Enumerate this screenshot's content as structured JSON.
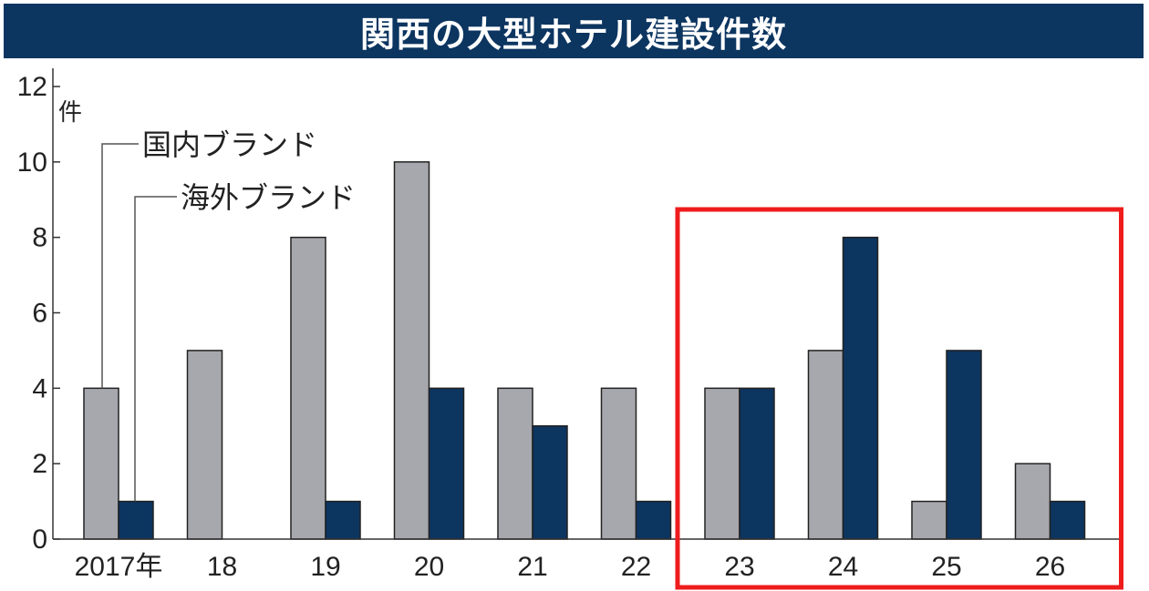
{
  "header": {
    "title": "関西の大型ホテル建設件数"
  },
  "colors": {
    "domestic": "#a7a8ad",
    "foreign": "#0c3560",
    "highlight": "#ee1c1c",
    "title_bg": "#0c3560"
  },
  "chart_data": {
    "type": "bar",
    "title": "関西の大型ホテル建設件数",
    "unit_label": "件",
    "categories": [
      "2017年",
      "18",
      "19",
      "20",
      "21",
      "22",
      "23",
      "24",
      "25",
      "26"
    ],
    "series": [
      {
        "name": "国内ブランド",
        "values": [
          4,
          5,
          8,
          10,
          4,
          4,
          4,
          5,
          1,
          2
        ]
      },
      {
        "name": "海外ブランド",
        "values": [
          1,
          0,
          1,
          4,
          3,
          1,
          4,
          8,
          5,
          1
        ]
      }
    ],
    "ylim": [
      0,
      12
    ],
    "yticks": [
      0,
      2,
      4,
      6,
      8,
      10,
      12
    ],
    "highlight_categories": [
      "23",
      "24",
      "25",
      "26"
    ],
    "grid": false
  }
}
